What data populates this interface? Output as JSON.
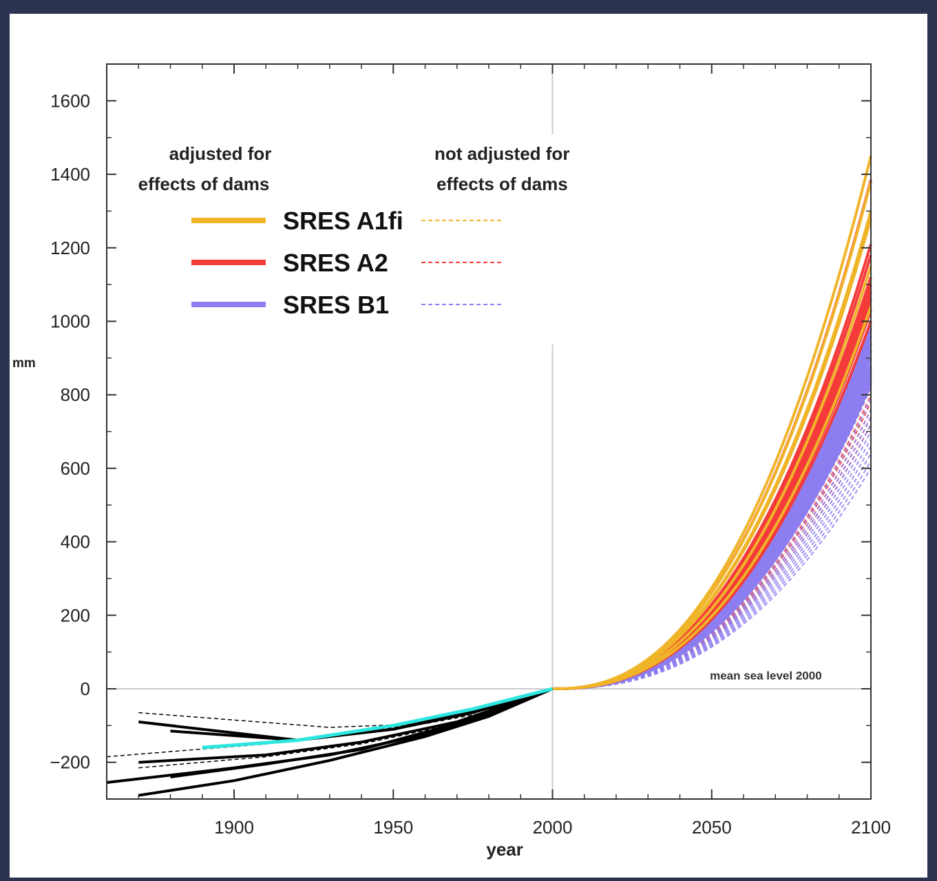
{
  "chart_data": {
    "type": "line",
    "title": "",
    "xlabel": "year",
    "ylabel": "mm",
    "xlim": [
      1860,
      2100
    ],
    "ylim": [
      -300,
      1700
    ],
    "x_ticks": [
      1900,
      1950,
      2000,
      2050,
      2100
    ],
    "y_ticks": [
      -200,
      0,
      200,
      400,
      600,
      800,
      1000,
      1200,
      1400,
      1600
    ],
    "y_tick_labels": [
      "−200",
      "0",
      "200",
      "400",
      "600",
      "800",
      "1000",
      "1200",
      "1400",
      "1600"
    ],
    "grid": false,
    "reference_lines": {
      "x": 2000,
      "y": 0
    },
    "annotations": [
      {
        "text": "mean sea level 2000",
        "x": 2067,
        "y": 25
      }
    ],
    "legend": {
      "placement": "top-left",
      "header_adjusted": [
        "adjusted for",
        "effects of dams"
      ],
      "header_not_adjusted": [
        "not adjusted for",
        "effects of dams"
      ],
      "entries": [
        {
          "name": "SRES A1fi",
          "color": "#f0b429"
        },
        {
          "name": "SRES A2",
          "color": "#f53a3a"
        },
        {
          "name": "SRES B1",
          "color": "#8c7ef0"
        }
      ]
    },
    "historical_series": {
      "color": "#000000",
      "highlight_color": "#2ee6e0",
      "series": [
        {
          "x": [
            1870,
            1900,
            1920,
            1950,
            1975,
            2000
          ],
          "y": [
            -90,
            -120,
            -140,
            -110,
            -60,
            0
          ]
        },
        {
          "x": [
            1880,
            1920,
            1950,
            1975,
            2000
          ],
          "y": [
            -115,
            -140,
            -110,
            -65,
            0
          ]
        },
        {
          "x": [
            1860,
            1900,
            1930,
            1960,
            1980,
            2000
          ],
          "y": [
            -255,
            -215,
            -180,
            -125,
            -70,
            0
          ]
        },
        {
          "x": [
            1870,
            1900,
            1930,
            1960,
            1980,
            2000
          ],
          "y": [
            -290,
            -250,
            -195,
            -130,
            -75,
            0
          ]
        },
        {
          "x": [
            1880,
            1910,
            1940,
            1970,
            2000
          ],
          "y": [
            -240,
            -205,
            -165,
            -95,
            0
          ]
        },
        {
          "x": [
            1870,
            1910,
            1940,
            1970,
            2000
          ],
          "y": [
            -200,
            -180,
            -145,
            -90,
            0
          ]
        }
      ],
      "dashed_series": [
        {
          "x": [
            1870,
            1930,
            1960,
            1985,
            2000
          ],
          "y": [
            -65,
            -105,
            -95,
            -55,
            0
          ]
        },
        {
          "x": [
            1860,
            1910,
            1940,
            1970,
            2000
          ],
          "y": [
            -185,
            -150,
            -120,
            -75,
            0
          ]
        },
        {
          "x": [
            1870,
            1910,
            1940,
            1970,
            2000
          ],
          "y": [
            -215,
            -185,
            -150,
            -95,
            0
          ]
        }
      ],
      "highlight": {
        "x": [
          1890,
          1920,
          1950,
          1975,
          2000
        ],
        "y": [
          -160,
          -140,
          -100,
          -55,
          0
        ]
      }
    },
    "projection_series": {
      "x_start": 2000,
      "x_end": 2100,
      "curve_exponent": 2.4,
      "solid_end_values": {
        "SRES A1fi": [
          1450,
          1380,
          1300,
          1280,
          1150,
          1040
        ],
        "SRES A2": [
          1385,
          1210,
          1180,
          1120,
          1100,
          1080,
          1060,
          1030,
          1000
        ],
        "SRES B1": [
          1030,
          1000,
          980,
          960,
          940,
          920,
          900,
          880,
          870,
          860,
          850,
          840,
          830
        ]
      },
      "dashed_end_values": {
        "SRES A1fi": [
          1000,
          960,
          930,
          900
        ],
        "SRES A2": [
          940,
          900,
          870,
          840,
          820,
          800,
          780,
          760,
          740,
          720
        ],
        "SRES B1": [
          980,
          950,
          920,
          880,
          850,
          820,
          790,
          760,
          740,
          720,
          700,
          680,
          660,
          640,
          620,
          600
        ]
      }
    }
  }
}
